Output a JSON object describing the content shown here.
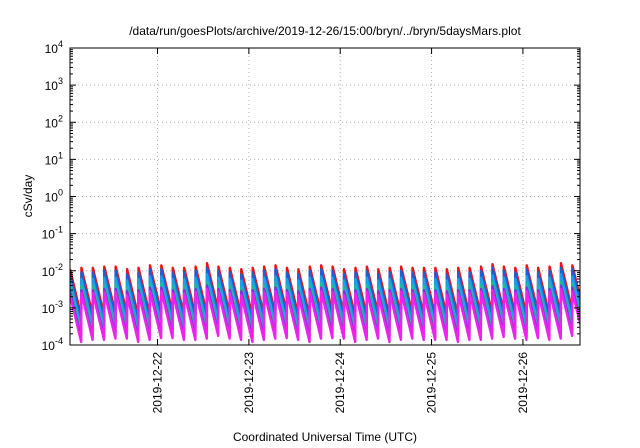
{
  "chart_data": {
    "type": "line",
    "title": "/data/run/goesPlots/archive/2019-12-26/15:00/bryn/../bryn/5daysMars.plot",
    "xlabel": "Coordinated Universal Time (UTC)",
    "ylabel": "cSv/day",
    "yscale": "log",
    "ylim": [
      0.0001,
      10000
    ],
    "xlim": [
      "2019-12-21T01:00",
      "2019-12-26T15:00"
    ],
    "grid": true,
    "legend": "none",
    "y_ticks": [
      {
        "value": 0.0001,
        "base": "10",
        "exp": "-4"
      },
      {
        "value": 0.001,
        "base": "10",
        "exp": "-3"
      },
      {
        "value": 0.01,
        "base": "10",
        "exp": "-2"
      },
      {
        "value": 0.1,
        "base": "10",
        "exp": "-1"
      },
      {
        "value": 1,
        "base": "10",
        "exp": "0"
      },
      {
        "value": 10,
        "base": "10",
        "exp": "1"
      },
      {
        "value": 100,
        "base": "10",
        "exp": "2"
      },
      {
        "value": 1000,
        "base": "10",
        "exp": "3"
      },
      {
        "value": 10000,
        "base": "10",
        "exp": "4"
      }
    ],
    "x_ticks": [
      {
        "value": "2019-12-22",
        "label": "2019-12-22"
      },
      {
        "value": "2019-12-23",
        "label": "2019-12-23"
      },
      {
        "value": "2019-12-24",
        "label": "2019-12-24"
      },
      {
        "value": "2019-12-25",
        "label": "2019-12-25"
      },
      {
        "value": "2019-12-26",
        "label": "2019-12-26"
      }
    ],
    "sawtooth_period_hours": 3,
    "series": [
      {
        "color": "#ee1111",
        "peak_values": [
          0.011,
          0.012,
          0.012,
          0.013,
          0.013,
          0.011,
          0.012,
          0.014,
          0.014,
          0.012,
          0.012,
          0.013,
          0.016,
          0.013,
          0.012,
          0.011,
          0.012,
          0.013,
          0.014,
          0.012,
          0.011,
          0.013,
          0.014,
          0.013,
          0.011,
          0.012,
          0.013,
          0.011,
          0.012,
          0.013,
          0.012,
          0.012,
          0.012,
          0.011,
          0.012,
          0.012,
          0.013,
          0.015,
          0.013,
          0.012,
          0.014,
          0.012,
          0.013,
          0.016,
          0.014,
          0.013,
          0.012,
          0.013,
          0.015,
          0.013,
          0.012,
          0.013,
          0.012,
          0.011,
          0.012,
          0.013,
          0.016,
          0.015,
          0.014,
          0.016,
          0.014,
          0.013,
          0.013,
          0.012,
          0.013,
          0.014,
          0.015,
          0.014,
          0.012,
          0.013,
          0.012,
          0.012,
          0.013,
          0.014,
          0.017,
          0.015,
          0.014,
          0.017,
          0.015,
          0.014,
          0.013,
          0.012,
          0.014,
          0.015,
          0.017,
          0.016,
          0.015,
          0.016,
          0.014,
          0.015,
          0.014,
          0.015,
          0.017,
          0.015,
          0.014,
          0.013,
          0.014,
          0.015,
          0.016,
          0.014,
          0.013,
          0.015,
          0.016,
          0.015,
          0.014,
          0.013,
          0.014,
          0.015,
          0.013,
          0.012,
          0.013,
          0.015,
          0.014,
          0.013,
          0.012,
          0.013,
          0.012,
          0.013,
          0.014,
          0.015,
          0.018,
          0.016,
          0.015,
          0.014,
          0.013,
          0.014,
          0.013,
          0.015,
          0.014,
          0.012,
          0.013,
          0.012,
          0.011,
          0.012,
          0.012
        ]
      },
      {
        "color": "#1f5fd6",
        "peak_values": [
          0.008,
          0.009,
          0.009,
          0.01,
          0.01,
          0.008,
          0.009,
          0.011,
          0.011,
          0.009,
          0.009,
          0.01,
          0.012,
          0.01,
          0.009,
          0.008,
          0.009,
          0.01,
          0.011,
          0.009,
          0.008,
          0.01,
          0.011,
          0.01,
          0.008,
          0.009,
          0.01,
          0.008,
          0.009,
          0.01,
          0.009,
          0.009,
          0.009,
          0.008,
          0.009,
          0.009,
          0.01,
          0.012,
          0.01,
          0.009,
          0.011,
          0.009,
          0.01,
          0.012,
          0.011,
          0.01,
          0.009,
          0.01,
          0.012,
          0.01,
          0.009,
          0.01,
          0.009,
          0.008,
          0.009,
          0.01,
          0.012,
          0.011,
          0.011,
          0.012,
          0.011,
          0.01,
          0.01,
          0.009,
          0.01,
          0.011,
          0.012,
          0.011,
          0.009,
          0.01,
          0.009,
          0.009,
          0.01,
          0.011,
          0.013,
          0.012,
          0.011,
          0.013,
          0.012,
          0.011,
          0.01,
          0.009,
          0.011,
          0.012,
          0.013,
          0.012,
          0.012,
          0.012,
          0.011,
          0.012,
          0.011,
          0.012,
          0.013,
          0.012,
          0.011,
          0.01,
          0.011,
          0.012,
          0.012,
          0.011,
          0.01,
          0.012,
          0.012,
          0.012,
          0.011,
          0.01,
          0.011,
          0.012,
          0.01,
          0.009,
          0.01,
          0.012,
          0.011,
          0.01,
          0.009,
          0.01,
          0.009,
          0.01,
          0.011,
          0.012,
          0.014,
          0.012,
          0.012,
          0.011,
          0.01,
          0.011,
          0.01,
          0.012,
          0.011,
          0.009,
          0.01,
          0.009,
          0.008,
          0.009,
          0.009
        ]
      },
      {
        "color": "#1aa0e6",
        "peak_values": [
          0.0055,
          0.006,
          0.006,
          0.0065,
          0.0065,
          0.0055,
          0.006,
          0.007,
          0.007,
          0.006,
          0.006,
          0.0065,
          0.008,
          0.0065,
          0.006,
          0.0055,
          0.006,
          0.0065,
          0.007,
          0.006,
          0.0055,
          0.0065,
          0.007,
          0.0065,
          0.0055,
          0.006,
          0.0065,
          0.0055,
          0.006,
          0.0065,
          0.006,
          0.006,
          0.006,
          0.0055,
          0.006,
          0.006,
          0.0065,
          0.0075,
          0.0065,
          0.006,
          0.007,
          0.006,
          0.0065,
          0.008,
          0.007,
          0.0065,
          0.006,
          0.0065,
          0.0075,
          0.0065,
          0.006,
          0.0065,
          0.006,
          0.0055,
          0.006,
          0.0065,
          0.008,
          0.0075,
          0.007,
          0.008,
          0.007,
          0.0065,
          0.0065,
          0.006,
          0.0065,
          0.007,
          0.0075,
          0.007,
          0.006,
          0.0065,
          0.006,
          0.006,
          0.0065,
          0.007,
          0.0085,
          0.0075,
          0.007,
          0.0085,
          0.0075,
          0.007,
          0.0065,
          0.006,
          0.007,
          0.0075,
          0.0085,
          0.008,
          0.0075,
          0.008,
          0.007,
          0.0075,
          0.007,
          0.0075,
          0.0085,
          0.0075,
          0.007,
          0.0065,
          0.007,
          0.0075,
          0.008,
          0.007,
          0.0065,
          0.0075,
          0.008,
          0.0075,
          0.007,
          0.0065,
          0.007,
          0.0075,
          0.0065,
          0.006,
          0.0065,
          0.0075,
          0.007,
          0.0065,
          0.006,
          0.0065,
          0.006,
          0.0065,
          0.007,
          0.0075,
          0.009,
          0.008,
          0.0075,
          0.007,
          0.0065,
          0.007,
          0.0065,
          0.0075,
          0.007,
          0.006,
          0.0065,
          0.006,
          0.0055,
          0.006,
          0.006
        ]
      },
      {
        "color": "#20b8a0",
        "peak_values": [
          0.0035,
          0.004,
          0.004,
          0.0042,
          0.0042,
          0.0035,
          0.004,
          0.0045,
          0.0045,
          0.004,
          0.004,
          0.0042,
          0.005,
          0.0042,
          0.004,
          0.0035,
          0.004,
          0.0042,
          0.0045,
          0.004,
          0.0035,
          0.0042,
          0.0045,
          0.0042,
          0.0035,
          0.004,
          0.0042,
          0.0035,
          0.004,
          0.0042,
          0.004,
          0.004,
          0.004,
          0.0035,
          0.004,
          0.004,
          0.0042,
          0.0048,
          0.0042,
          0.004,
          0.0045,
          0.004,
          0.0042,
          0.005,
          0.0045,
          0.0042,
          0.004,
          0.0042,
          0.0048,
          0.0042,
          0.004,
          0.0042,
          0.004,
          0.0035,
          0.004,
          0.0042,
          0.005,
          0.0048,
          0.0045,
          0.005,
          0.0045,
          0.0042,
          0.0042,
          0.004,
          0.0042,
          0.0045,
          0.0048,
          0.0045,
          0.004,
          0.0042,
          0.004,
          0.004,
          0.0042,
          0.0045,
          0.0055,
          0.0048,
          0.0045,
          0.0055,
          0.0048,
          0.0045,
          0.0042,
          0.004,
          0.0045,
          0.0048,
          0.0055,
          0.005,
          0.0048,
          0.005,
          0.0045,
          0.0048,
          0.0045,
          0.0048,
          0.0055,
          0.0048,
          0.0045,
          0.0042,
          0.0045,
          0.0048,
          0.005,
          0.0045,
          0.0042,
          0.0048,
          0.005,
          0.0048,
          0.0045,
          0.0042,
          0.0045,
          0.0048,
          0.0042,
          0.004,
          0.0042,
          0.0048,
          0.0045,
          0.0042,
          0.004,
          0.0042,
          0.004,
          0.0042,
          0.0045,
          0.0048,
          0.0058,
          0.005,
          0.0048,
          0.0045,
          0.0042,
          0.0045,
          0.0042,
          0.0048,
          0.0045,
          0.004,
          0.0042,
          0.004,
          0.0035,
          0.004,
          0.004
        ]
      },
      {
        "color": "#8a2be2",
        "peak_values": [
          0.0028,
          0.003,
          0.003,
          0.0032,
          0.0032,
          0.0028,
          0.003,
          0.0035,
          0.0035,
          0.003,
          0.003,
          0.0032,
          0.004,
          0.0032,
          0.003,
          0.0028,
          0.003,
          0.0032,
          0.0035,
          0.003,
          0.0028,
          0.0032,
          0.0035,
          0.0032,
          0.0028,
          0.003,
          0.0032,
          0.0028,
          0.003,
          0.0032,
          0.003,
          0.003,
          0.003,
          0.0028,
          0.003,
          0.003,
          0.0032,
          0.0038,
          0.0032,
          0.003,
          0.0035,
          0.003,
          0.0032,
          0.004,
          0.0035,
          0.0032,
          0.003,
          0.0032,
          0.0038,
          0.0032,
          0.003,
          0.0032,
          0.003,
          0.0028,
          0.003,
          0.0032,
          0.004,
          0.0038,
          0.0035,
          0.004,
          0.0035,
          0.0032,
          0.0032,
          0.003,
          0.0032,
          0.0035,
          0.0038,
          0.0035,
          0.003,
          0.0032,
          0.003,
          0.003,
          0.0032,
          0.0035,
          0.0042,
          0.0038,
          0.0035,
          0.0042,
          0.0038,
          0.0035,
          0.0032,
          0.003,
          0.0035,
          0.0038,
          0.0042,
          0.004,
          0.0038,
          0.004,
          0.0035,
          0.0038,
          0.0035,
          0.0038,
          0.0042,
          0.0038,
          0.0035,
          0.0032,
          0.0035,
          0.0038,
          0.004,
          0.0035,
          0.0032,
          0.0038,
          0.004,
          0.0038,
          0.0035,
          0.0032,
          0.0035,
          0.0038,
          0.0032,
          0.003,
          0.0032,
          0.0038,
          0.0035,
          0.0032,
          0.003,
          0.0032,
          0.003,
          0.0032,
          0.0035,
          0.0038,
          0.0045,
          0.004,
          0.0038,
          0.0035,
          0.0032,
          0.0035,
          0.0032,
          0.0038,
          0.0035,
          0.003,
          0.0032,
          0.003,
          0.0028,
          0.003,
          0.003
        ]
      },
      {
        "color": "#ee22ee",
        "peak_values": [
          0.0022,
          0.0025,
          0.0025,
          0.0027,
          0.0027,
          0.0022,
          0.0025,
          0.0028,
          0.0028,
          0.0025,
          0.0025,
          0.0027,
          0.0032,
          0.0027,
          0.0025,
          0.0022,
          0.0025,
          0.0027,
          0.0028,
          0.0025,
          0.0022,
          0.0027,
          0.0028,
          0.0027,
          0.0022,
          0.0025,
          0.0027,
          0.0022,
          0.0025,
          0.0027,
          0.0025,
          0.0025,
          0.0025,
          0.0022,
          0.0025,
          0.0025,
          0.0027,
          0.003,
          0.0027,
          0.0025,
          0.0028,
          0.0025,
          0.0027,
          0.0032,
          0.0028,
          0.0027,
          0.0025,
          0.0027,
          0.003,
          0.0027,
          0.0025,
          0.0027,
          0.0025,
          0.0022,
          0.0025,
          0.0027,
          0.0032,
          0.003,
          0.0028,
          0.0032,
          0.0028,
          0.0027,
          0.0027,
          0.0025,
          0.0027,
          0.0028,
          0.003,
          0.0028,
          0.0025,
          0.0027,
          0.0025,
          0.0025,
          0.0027,
          0.0028,
          0.0035,
          0.003,
          0.0028,
          0.0035,
          0.003,
          0.0028,
          0.0027,
          0.0025,
          0.0028,
          0.003,
          0.0035,
          0.0032,
          0.003,
          0.0032,
          0.0028,
          0.003,
          0.0028,
          0.003,
          0.0035,
          0.003,
          0.0028,
          0.0027,
          0.0028,
          0.003,
          0.0032,
          0.0028,
          0.0027,
          0.003,
          0.0032,
          0.003,
          0.0028,
          0.0027,
          0.0028,
          0.003,
          0.0027,
          0.0025,
          0.0027,
          0.003,
          0.0028,
          0.0027,
          0.0025,
          0.0027,
          0.0025,
          0.0027,
          0.0028,
          0.003,
          0.0036,
          0.0032,
          0.003,
          0.0028,
          0.0027,
          0.0028,
          0.0027,
          0.003,
          0.0028,
          0.0025,
          0.0027,
          0.0025,
          0.0022,
          0.0025,
          0.0025
        ]
      }
    ],
    "trough_ratio": 0.055
  }
}
